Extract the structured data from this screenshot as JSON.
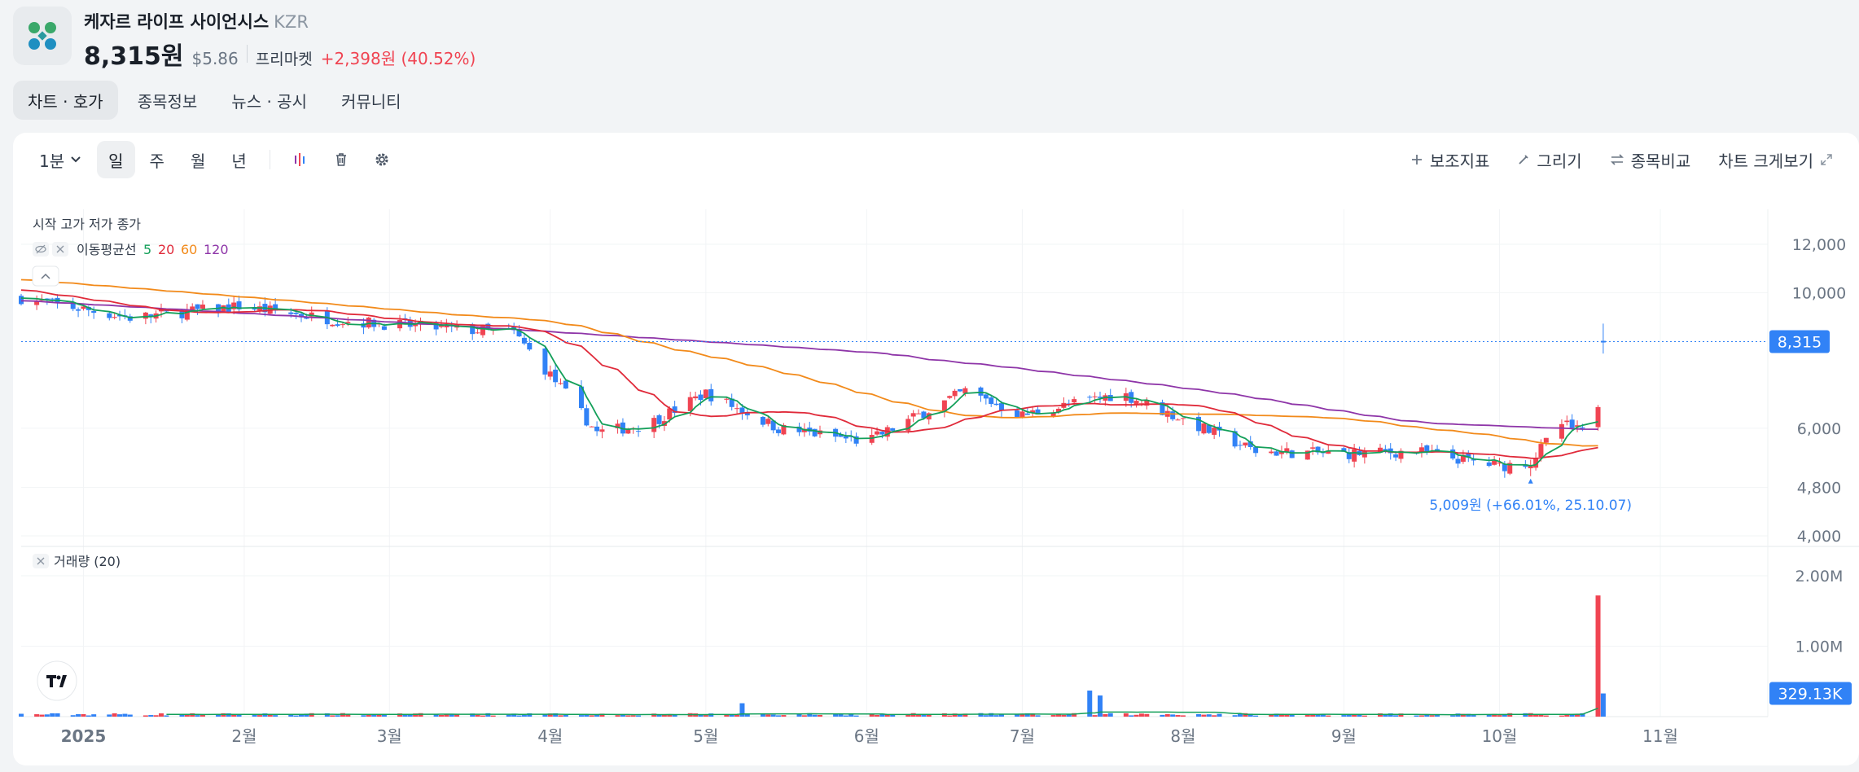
{
  "header": {
    "stock_name": "케자르 라이프 사이언시스",
    "ticker": "KZR",
    "price": "8,315원",
    "usd_price": "$5.86",
    "session_label": "프리마켓",
    "change": "+2,398원 (40.52%)"
  },
  "tabs": [
    {
      "label": "차트 · 호가",
      "active": true
    },
    {
      "label": "종목정보"
    },
    {
      "label": "뉴스 · 공시"
    },
    {
      "label": "커뮤니티"
    }
  ],
  "toolbar": {
    "interval": "1분",
    "periods": [
      "일",
      "주",
      "월",
      "년"
    ],
    "active_period": "일",
    "indicator_label": "보조지표",
    "draw_label": "그리기",
    "compare_label": "종목비교",
    "fullscreen_label": "차트 크게보기"
  },
  "colors": {
    "up": "#f04452",
    "down": "#3182f6",
    "ma5": "#14a05a",
    "ma20": "#e02a3a",
    "ma60": "#f28a1a",
    "ma120": "#8e35a8",
    "volume_ma": "#14a05a",
    "accent": "#3182f6"
  },
  "chart_data": {
    "type": "candlestick",
    "ohlc_label": "시작 고가 저가 종가",
    "ma_legend": {
      "label": "이동평균선",
      "periods": [
        "5",
        "20",
        "60",
        "120"
      ]
    },
    "volume_legend": "거래량 (20)",
    "price_axis": {
      "ticks": [
        "12,000",
        "10,000",
        "6,000",
        "4,800",
        "4,000"
      ],
      "log_scale": true
    },
    "volume_axis": {
      "ticks": [
        "2.00M",
        "1.00M"
      ]
    },
    "x_ticks": [
      "2025",
      "2월",
      "3월",
      "4월",
      "5월",
      "6월",
      "7월",
      "8월",
      "9월",
      "10월",
      "11월"
    ],
    "current_price_label": "8,315",
    "current_price": 8315,
    "current_volume_label": "329.13K",
    "low_annotation": "5,009원 (+66.01%, 25.10.07)",
    "trend_anchors": [
      {
        "x": "2024-12-20",
        "close": 9800
      },
      {
        "x": "2025-01-10",
        "close": 9100
      },
      {
        "x": "2025-01-31",
        "close": 9500
      },
      {
        "x": "2025-02-20",
        "close": 9000
      },
      {
        "x": "2025-03-15",
        "close": 8700
      },
      {
        "x": "2025-03-25",
        "close": 8600
      },
      {
        "x": "2025-04-03",
        "close": 7000
      },
      {
        "x": "2025-04-10",
        "close": 5900
      },
      {
        "x": "2025-04-20",
        "close": 6100
      },
      {
        "x": "2025-05-01",
        "close": 6850
      },
      {
        "x": "2025-05-15",
        "close": 6000
      },
      {
        "x": "2025-06-01",
        "close": 5700
      },
      {
        "x": "2025-06-20",
        "close": 6900
      },
      {
        "x": "2025-07-01",
        "close": 6300
      },
      {
        "x": "2025-07-20",
        "close": 6850
      },
      {
        "x": "2025-08-01",
        "close": 6200
      },
      {
        "x": "2025-08-15",
        "close": 5500
      },
      {
        "x": "2025-09-01",
        "close": 5450
      },
      {
        "x": "2025-09-15",
        "close": 5500
      },
      {
        "x": "2025-10-01",
        "close": 5200
      },
      {
        "x": "2025-10-07",
        "close": 5300
      },
      {
        "x": "2025-10-13",
        "close": 6100
      },
      {
        "x": "2025-10-17",
        "close": 5900
      },
      {
        "x": "2025-10-20",
        "close": 6600
      }
    ],
    "last_session": {
      "x": "2025-10-21",
      "close": 8315,
      "high": 8900,
      "low": 7950
    },
    "volume_spikes": [
      {
        "x": "2025-03-01",
        "volume": 100000
      },
      {
        "x": "2025-03-23",
        "volume": 90000
      },
      {
        "x": "2025-05-08",
        "volume": 190000
      },
      {
        "x": "2025-07-14",
        "volume": 370000
      },
      {
        "x": "2025-07-16",
        "volume": 300000
      },
      {
        "x": "2025-10-20",
        "volume": 1720000
      },
      {
        "x": "2025-10-21",
        "volume": 329130
      }
    ]
  }
}
